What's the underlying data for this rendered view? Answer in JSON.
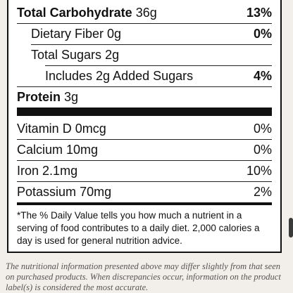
{
  "label": {
    "carb": {
      "name": "Total Carbohydrate",
      "amount": "36g",
      "dv": "13%"
    },
    "fiber": {
      "name": "Dietary Fiber",
      "amount": "0g",
      "dv": "0%"
    },
    "sugars": {
      "name": "Total Sugars",
      "amount": "2g"
    },
    "added": {
      "text": "Includes 2g Added Sugars",
      "dv": "4%"
    },
    "protein": {
      "name": "Protein",
      "amount": "3g"
    },
    "vitd": {
      "name": "Vitamin D",
      "amount": "0mcg",
      "dv": "0%"
    },
    "calcium": {
      "name": "Calcium",
      "amount": "10mg",
      "dv": "0%"
    },
    "iron": {
      "name": "Iron",
      "amount": "2.1mg",
      "dv": "10%"
    },
    "potassium": {
      "name": "Potassium",
      "amount": "70mg",
      "dv": "2%"
    },
    "footnote": "*The % Daily Value tells you how much a nutrient in a serving of food contributes to a daily diet. 2,000 calories a day is used for general nutrition advice."
  },
  "disclaimer": "The nutritional information presented above may differ slightly from that seen on purchased products. When discrepancies occur, information on the product label(s) is considered the most accurate."
}
